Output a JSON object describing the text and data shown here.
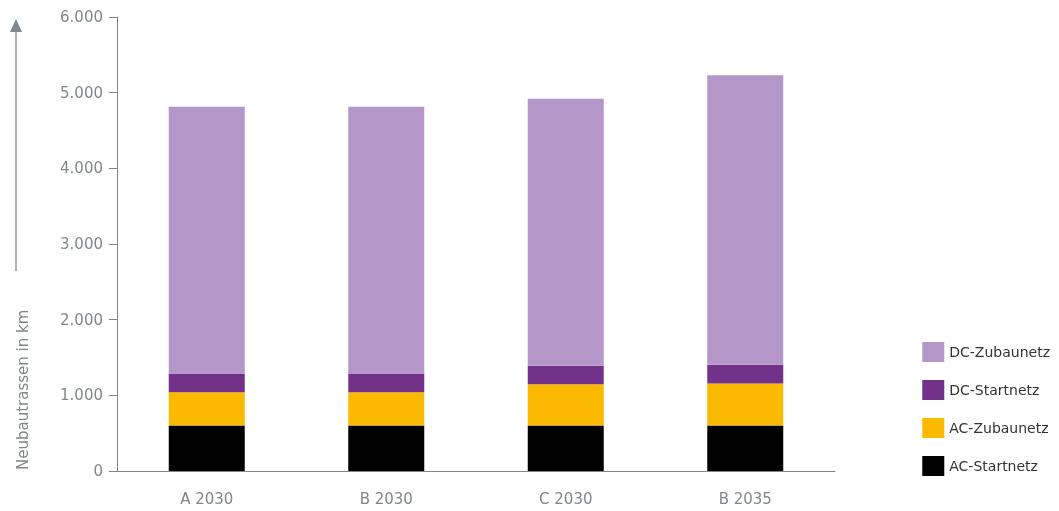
{
  "chart_data": {
    "type": "bar",
    "stacked": true,
    "ylabel": "Neubautrassen in km",
    "categories": [
      "A 2030",
      "B 2030",
      "C 2030",
      "B 2035"
    ],
    "series": [
      {
        "name": "AC-Startnetz",
        "color": "#000000",
        "values": [
          600,
          600,
          600,
          600
        ]
      },
      {
        "name": "AC-Zubaunetz",
        "color": "#fbb900",
        "values": [
          440,
          440,
          545,
          555
        ]
      },
      {
        "name": "DC-Startnetz",
        "color": "#72328a",
        "values": [
          250,
          250,
          245,
          250
        ]
      },
      {
        "name": "DC-Zubaunetz",
        "color": "#b496c8",
        "values": [
          3525,
          3525,
          3530,
          3825
        ]
      }
    ],
    "ylim": [
      0,
      6000
    ],
    "yticks": [
      0,
      {
        "value": 1000,
        "label": "1.000"
      },
      {
        "value": 2000,
        "label": "2.000"
      },
      {
        "value": 3000,
        "label": "3.000"
      },
      {
        "value": 4000,
        "label": "4.000"
      },
      {
        "value": 5000,
        "label": "5.000"
      },
      {
        "value": 6000,
        "label": "6.000"
      }
    ],
    "grid": false,
    "legend": "bottom right"
  }
}
